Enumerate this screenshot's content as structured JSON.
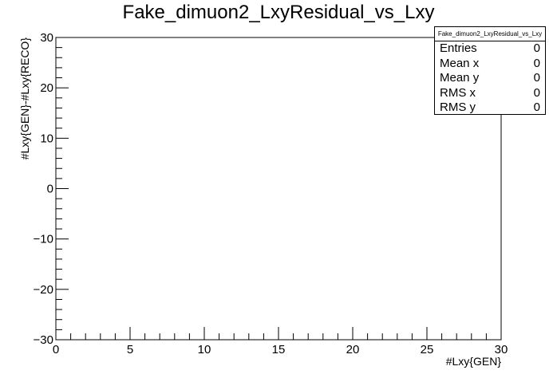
{
  "chart_data": {
    "type": "scatter",
    "title": "Fake_dimuon2_LxyResidual_vs_Lxy",
    "xlabel": "#Lxy{GEN}",
    "ylabel": "#Lxy{GEN}-#Lxy{RECO}",
    "xlim": [
      0,
      30
    ],
    "ylim": [
      -30,
      30
    ],
    "x_ticks": [
      0,
      5,
      10,
      15,
      20,
      25,
      30
    ],
    "y_ticks": [
      -30,
      -20,
      -10,
      0,
      10,
      20,
      30
    ],
    "x_tick_labels": [
      "0",
      "5",
      "10",
      "15",
      "20",
      "25",
      "30"
    ],
    "y_tick_labels": [
      "−30",
      "−20",
      "−10",
      "0",
      "10",
      "20",
      "30"
    ],
    "x": [],
    "y": [],
    "grid": false,
    "legend": "top-right",
    "stats_box": {
      "name": "Fake_dimuon2_LxyResidual_vs_Lxy",
      "rows": [
        {
          "label": "Entries",
          "value": "0"
        },
        {
          "label": "Mean x",
          "value": "0"
        },
        {
          "label": "Mean y",
          "value": "0"
        },
        {
          "label": "RMS x",
          "value": "0"
        },
        {
          "label": "RMS y",
          "value": "0"
        }
      ]
    }
  }
}
